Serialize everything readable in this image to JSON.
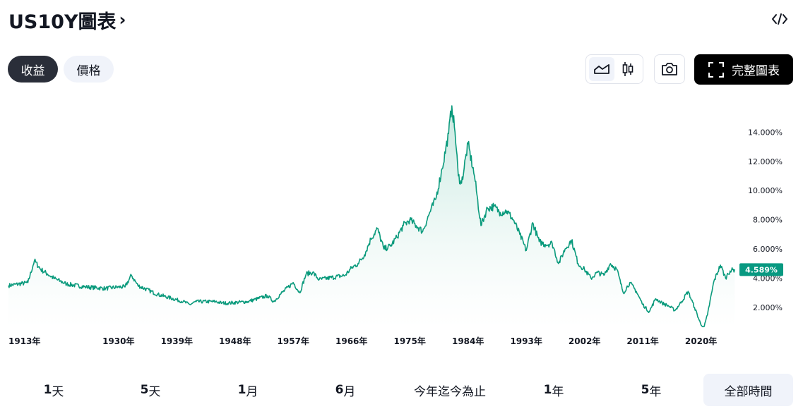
{
  "header": {
    "title": "US10Y圖表",
    "chevron": "›"
  },
  "icons": {
    "embed": "code-brackets-icon",
    "area": "area-chart-icon",
    "candles": "candlestick-icon",
    "camera": "camera-icon",
    "fullscreen": "fullscreen-corners-icon"
  },
  "tabs": [
    {
      "label": "收益",
      "active": true
    },
    {
      "label": "價格",
      "active": false
    }
  ],
  "full_chart_label": "完整圖表",
  "colors": {
    "line": "#0a9a7c",
    "fill_top": "#c3e7de",
    "badge": "#089981",
    "active_pill": "#2a2e39"
  },
  "chart_data": {
    "type": "area",
    "title": "",
    "xlabel": "",
    "ylabel": "",
    "x_ticks": [
      "1913年",
      "1930年",
      "1939年",
      "1948年",
      "1957年",
      "1966年",
      "1975年",
      "1984年",
      "1993年",
      "2002年",
      "2011年",
      "2020年"
    ],
    "y_ticks": [
      "2.000%",
      "4.000%",
      "6.000%",
      "8.000%",
      "10.000%",
      "12.000%",
      "14.000%"
    ],
    "y_tick_values": [
      2,
      4,
      6,
      8,
      10,
      12,
      14
    ],
    "ylim": [
      0.6,
      15.9
    ],
    "xlim": [
      1913,
      2025.5
    ],
    "last_value_label": "4.589%",
    "last_value": 4.589,
    "grid": false,
    "series": [
      {
        "x": [
          1913,
          1916,
          1917,
          1918,
          1919,
          1920,
          1921,
          1922,
          1925,
          1928,
          1930,
          1931,
          1932,
          1933,
          1936,
          1940,
          1941,
          1942,
          1945,
          1946,
          1947,
          1950,
          1953,
          1954,
          1955,
          1957,
          1958,
          1959,
          1960,
          1961,
          1965,
          1966,
          1967,
          1968,
          1969,
          1970,
          1971,
          1972,
          1973,
          1974,
          1975,
          1976,
          1977,
          1978,
          1979,
          1980,
          1981,
          1981.5,
          1982,
          1982.5,
          1983,
          1984,
          1985,
          1986,
          1987,
          1988,
          1989,
          1990,
          1991,
          1992,
          1993,
          1994,
          1995,
          1996,
          1997,
          1998,
          1999,
          2000,
          2001,
          2002,
          2003,
          2004,
          2005,
          2006,
          2007,
          2008,
          2009,
          2010,
          2011,
          2012,
          2013,
          2014,
          2015,
          2016,
          2017,
          2018,
          2019,
          2020,
          2020.5,
          2021,
          2022,
          2023,
          2023.8,
          2024,
          2024.5,
          2025.2
        ],
        "values": [
          3.5,
          3.7,
          5.2,
          4.6,
          4.3,
          4.0,
          3.8,
          3.6,
          3.4,
          3.3,
          3.4,
          3.4,
          4.2,
          3.5,
          2.9,
          2.4,
          2.2,
          2.4,
          2.4,
          2.3,
          2.3,
          2.4,
          2.8,
          2.4,
          2.9,
          3.7,
          3.0,
          4.3,
          4.4,
          3.9,
          4.2,
          4.7,
          5.0,
          5.6,
          6.7,
          7.4,
          6.0,
          6.2,
          6.8,
          7.6,
          8.0,
          7.6,
          7.2,
          8.4,
          9.4,
          11.5,
          13.9,
          15.8,
          14.0,
          11.0,
          10.5,
          13.2,
          11.0,
          7.6,
          8.8,
          8.9,
          8.5,
          8.6,
          8.0,
          7.0,
          5.9,
          7.8,
          6.5,
          6.3,
          6.4,
          5.0,
          6.0,
          6.6,
          5.0,
          4.6,
          4.0,
          4.4,
          4.2,
          5.0,
          4.6,
          3.0,
          3.7,
          3.1,
          2.2,
          1.7,
          2.6,
          2.3,
          2.1,
          1.8,
          2.4,
          3.1,
          2.0,
          0.8,
          0.7,
          1.5,
          3.8,
          4.9,
          4.0,
          4.2,
          4.5,
          4.6
        ]
      }
    ]
  },
  "time_ranges": [
    {
      "num": "1",
      "unit": "天",
      "active": false
    },
    {
      "num": "5",
      "unit": "天",
      "active": false
    },
    {
      "num": "1",
      "unit": "月",
      "active": false
    },
    {
      "num": "6",
      "unit": "月",
      "active": false
    },
    {
      "num": "",
      "unit": "今年迄今為止",
      "active": false
    },
    {
      "num": "1",
      "unit": "年",
      "active": false
    },
    {
      "num": "5",
      "unit": "年",
      "active": false
    },
    {
      "num": "",
      "unit": "全部時間",
      "active": true
    }
  ]
}
